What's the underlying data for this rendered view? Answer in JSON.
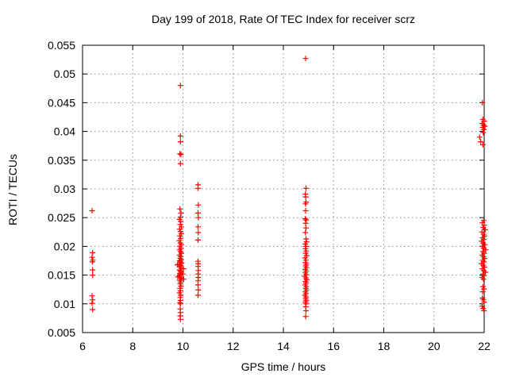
{
  "chart_data": {
    "type": "scatter",
    "title": "Day 199 of 2018, Rate Of TEC Index for receiver scrz",
    "xlabel": "GPS time / hours",
    "ylabel": "ROTI / TECUs",
    "xlim": [
      6,
      22
    ],
    "ylim": [
      0.005,
      0.055
    ],
    "x_ticks": [
      6,
      8,
      10,
      12,
      14,
      16,
      18,
      20,
      22
    ],
    "x_tick_labels": [
      "6",
      "8",
      "10",
      "12",
      "14",
      "16",
      "18",
      "20",
      "22"
    ],
    "y_ticks": [
      0.005,
      0.01,
      0.015,
      0.02,
      0.025,
      0.03,
      0.035,
      0.04,
      0.045,
      0.05,
      0.055
    ],
    "y_tick_labels": [
      "0.005",
      "0.01",
      "0.015",
      "0.02",
      "0.025",
      "0.03",
      "0.035",
      "0.04",
      "0.045",
      "0.05",
      "0.055"
    ],
    "grid": true,
    "legend": false,
    "marker": "plus",
    "series": [
      {
        "name": "ROTI",
        "points": [
          [
            6.38,
            0.0262
          ],
          [
            6.4,
            0.0189
          ],
          [
            6.38,
            0.0181
          ],
          [
            6.41,
            0.0176
          ],
          [
            6.39,
            0.0173
          ],
          [
            6.4,
            0.0159
          ],
          [
            6.4,
            0.015
          ],
          [
            6.38,
            0.0114
          ],
          [
            6.4,
            0.0107
          ],
          [
            6.38,
            0.0101
          ],
          [
            6.4,
            0.009
          ],
          [
            9.9,
            0.048
          ],
          [
            9.9,
            0.0392
          ],
          [
            9.9,
            0.0382
          ],
          [
            9.88,
            0.0361
          ],
          [
            9.92,
            0.036
          ],
          [
            9.9,
            0.0344
          ],
          [
            9.88,
            0.0265
          ],
          [
            9.92,
            0.0258
          ],
          [
            9.9,
            0.0251
          ],
          [
            9.86,
            0.0247
          ],
          [
            9.91,
            0.0243
          ],
          [
            9.89,
            0.0238
          ],
          [
            9.94,
            0.0234
          ],
          [
            9.87,
            0.023
          ],
          [
            9.9,
            0.0226
          ],
          [
            9.93,
            0.0222
          ],
          [
            9.88,
            0.0218
          ],
          [
            9.91,
            0.0214
          ],
          [
            9.85,
            0.021
          ],
          [
            9.9,
            0.0206
          ],
          [
            9.93,
            0.0203
          ],
          [
            9.88,
            0.02
          ],
          [
            9.92,
            0.0197
          ],
          [
            9.87,
            0.0194
          ],
          [
            9.9,
            0.0191
          ],
          [
            9.94,
            0.0188
          ],
          [
            9.86,
            0.0185
          ],
          [
            9.91,
            0.0182
          ],
          [
            9.89,
            0.0179
          ],
          [
            9.93,
            0.0177
          ],
          [
            9.87,
            0.0175
          ],
          [
            9.9,
            0.0173
          ],
          [
            9.95,
            0.0171
          ],
          [
            9.84,
            0.0169
          ],
          [
            9.78,
            0.0168
          ],
          [
            9.91,
            0.0167
          ],
          [
            9.88,
            0.0165
          ],
          [
            9.92,
            0.0163
          ],
          [
            10.02,
            0.0161
          ],
          [
            9.86,
            0.0159
          ],
          [
            9.9,
            0.0157
          ],
          [
            9.93,
            0.0155
          ],
          [
            9.88,
            0.0153
          ],
          [
            10.0,
            0.0152
          ],
          [
            9.91,
            0.0151
          ],
          [
            9.85,
            0.0149
          ],
          [
            9.79,
            0.0147
          ],
          [
            9.9,
            0.0146
          ],
          [
            9.93,
            0.0144
          ],
          [
            10.03,
            0.0143
          ],
          [
            9.87,
            0.0141
          ],
          [
            9.91,
            0.0138
          ],
          [
            9.89,
            0.0135
          ],
          [
            9.92,
            0.0131
          ],
          [
            9.88,
            0.0127
          ],
          [
            9.9,
            0.0123
          ],
          [
            9.86,
            0.0119
          ],
          [
            9.91,
            0.0115
          ],
          [
            9.89,
            0.0111
          ],
          [
            9.9,
            0.0106
          ],
          [
            9.88,
            0.0102
          ],
          [
            9.9,
            0.01
          ],
          [
            9.89,
            0.0091
          ],
          [
            9.9,
            0.0085
          ],
          [
            9.89,
            0.0079
          ],
          [
            9.9,
            0.0073
          ],
          [
            10.6,
            0.0307
          ],
          [
            10.6,
            0.0301
          ],
          [
            10.61,
            0.0272
          ],
          [
            10.6,
            0.0258
          ],
          [
            10.61,
            0.025
          ],
          [
            10.6,
            0.0234
          ],
          [
            10.61,
            0.0224
          ],
          [
            10.6,
            0.0211
          ],
          [
            10.6,
            0.0174
          ],
          [
            10.61,
            0.017
          ],
          [
            10.6,
            0.0165
          ],
          [
            10.61,
            0.0158
          ],
          [
            10.6,
            0.0152
          ],
          [
            10.61,
            0.0146
          ],
          [
            10.6,
            0.014
          ],
          [
            10.6,
            0.0133
          ],
          [
            10.61,
            0.0124
          ],
          [
            10.6,
            0.0115
          ],
          [
            14.89,
            0.0527
          ],
          [
            14.9,
            0.0301
          ],
          [
            14.88,
            0.0291
          ],
          [
            14.89,
            0.0286
          ],
          [
            14.9,
            0.0277
          ],
          [
            14.88,
            0.0274
          ],
          [
            14.89,
            0.0262
          ],
          [
            14.87,
            0.0248
          ],
          [
            14.91,
            0.0246
          ],
          [
            14.89,
            0.024
          ],
          [
            14.9,
            0.0232
          ],
          [
            14.88,
            0.0224
          ],
          [
            14.9,
            0.0213
          ],
          [
            14.92,
            0.0208
          ],
          [
            14.87,
            0.0204
          ],
          [
            14.9,
            0.02
          ],
          [
            14.88,
            0.0196
          ],
          [
            14.91,
            0.0192
          ],
          [
            14.89,
            0.0188
          ],
          [
            14.93,
            0.0184
          ],
          [
            14.86,
            0.018
          ],
          [
            14.9,
            0.0176
          ],
          [
            14.88,
            0.0172
          ],
          [
            14.91,
            0.0169
          ],
          [
            14.89,
            0.0166
          ],
          [
            14.92,
            0.0163
          ],
          [
            14.87,
            0.016
          ],
          [
            14.9,
            0.0157
          ],
          [
            14.88,
            0.0154
          ],
          [
            14.91,
            0.0151
          ],
          [
            14.85,
            0.0148
          ],
          [
            14.9,
            0.0145
          ],
          [
            14.93,
            0.0142
          ],
          [
            14.88,
            0.0139
          ],
          [
            14.9,
            0.0136
          ],
          [
            14.87,
            0.0133
          ],
          [
            14.91,
            0.013
          ],
          [
            14.89,
            0.0127
          ],
          [
            14.92,
            0.0124
          ],
          [
            14.88,
            0.0121
          ],
          [
            14.9,
            0.0118
          ],
          [
            14.86,
            0.0115
          ],
          [
            14.9,
            0.0112
          ],
          [
            14.89,
            0.0109
          ],
          [
            14.91,
            0.0106
          ],
          [
            14.88,
            0.0103
          ],
          [
            14.9,
            0.01
          ],
          [
            14.89,
            0.0095
          ],
          [
            14.9,
            0.0088
          ],
          [
            14.89,
            0.0078
          ],
          [
            21.93,
            0.045
          ],
          [
            21.95,
            0.0421
          ],
          [
            22.0,
            0.0418
          ],
          [
            21.92,
            0.0414
          ],
          [
            21.97,
            0.0411
          ],
          [
            22.03,
            0.0409
          ],
          [
            21.94,
            0.0407
          ],
          [
            21.98,
            0.0403
          ],
          [
            21.96,
            0.0398
          ],
          [
            21.82,
            0.039
          ],
          [
            21.86,
            0.0382
          ],
          [
            21.95,
            0.0377
          ],
          [
            21.98,
            0.0245
          ],
          [
            21.93,
            0.0241
          ],
          [
            22.0,
            0.0237
          ],
          [
            21.96,
            0.0233
          ],
          [
            22.04,
            0.0229
          ],
          [
            21.91,
            0.0225
          ],
          [
            21.97,
            0.0221
          ],
          [
            22.01,
            0.0218
          ],
          [
            21.94,
            0.0215
          ],
          [
            21.99,
            0.0212
          ],
          [
            21.9,
            0.0209
          ],
          [
            21.96,
            0.0206
          ],
          [
            22.03,
            0.0203
          ],
          [
            21.93,
            0.02
          ],
          [
            21.98,
            0.0197
          ],
          [
            22.06,
            0.0194
          ],
          [
            21.95,
            0.0191
          ],
          [
            22.0,
            0.0188
          ],
          [
            21.92,
            0.0185
          ],
          [
            21.97,
            0.0182
          ],
          [
            22.02,
            0.0179
          ],
          [
            21.94,
            0.0176
          ],
          [
            21.99,
            0.0173
          ],
          [
            21.89,
            0.017
          ],
          [
            21.96,
            0.0167
          ],
          [
            22.01,
            0.0164
          ],
          [
            21.93,
            0.0161
          ],
          [
            21.98,
            0.0158
          ],
          [
            22.05,
            0.0155
          ],
          [
            21.95,
            0.0152
          ],
          [
            22.0,
            0.0149
          ],
          [
            21.92,
            0.0146
          ],
          [
            21.97,
            0.0143
          ],
          [
            21.95,
            0.013
          ],
          [
            21.99,
            0.0126
          ],
          [
            21.94,
            0.0121
          ],
          [
            21.93,
            0.011
          ],
          [
            21.97,
            0.0107
          ],
          [
            22.0,
            0.0103
          ],
          [
            21.92,
            0.0096
          ],
          [
            21.96,
            0.0092
          ],
          [
            21.99,
            0.0088
          ]
        ]
      }
    ]
  },
  "colors": {
    "marker": "#ff0000",
    "grid": "#8c8c8c",
    "axis": "#000000",
    "text": "#000000",
    "background": "#ffffff"
  }
}
